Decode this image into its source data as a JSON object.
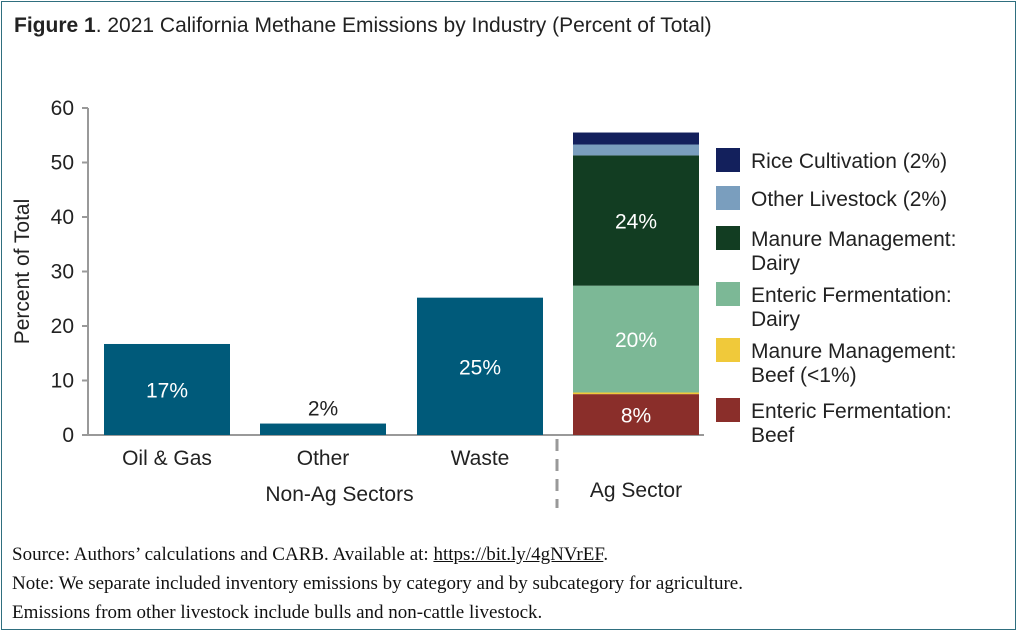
{
  "title": {
    "bold": "Figure 1",
    "rest": ". 2021 California Methane Emissions by Industry (Percent of Total)"
  },
  "notes": {
    "source_prefix": "Source: Authors’ calculations and CARB. Available at: ",
    "source_link": "https://bit.ly/4gNVrEF",
    "source_suffix": ".",
    "note_line1": "Note: We separate included inventory emissions by category and by subcategory for agriculture.",
    "note_line2": "Emissions from other livestock include bulls and non-cattle livestock."
  },
  "colors": {
    "non_ag": "#005a7a",
    "rice": "#13205c",
    "other_livestock": "#7a9ebe",
    "manure_dairy": "#123d22",
    "enteric_dairy": "#7cb896",
    "manure_beef": "#f0c93a",
    "enteric_beef": "#8a2e2a",
    "axis": "#999999"
  },
  "chart_data": {
    "type": "bar",
    "ylabel": "Percent of Total",
    "ylim": [
      0,
      60
    ],
    "yticks": [
      0,
      10,
      20,
      30,
      40,
      50,
      60
    ],
    "grid": false,
    "legend_position": "right",
    "groups": [
      {
        "label": "Non-Ag Sectors",
        "categories": [
          "Oil & Gas",
          "Other",
          "Waste"
        ]
      },
      {
        "label": "Ag Sector",
        "categories": [
          ""
        ]
      }
    ],
    "non_ag_bars": [
      {
        "category": "Oil & Gas",
        "value": 16.7,
        "label": "17%"
      },
      {
        "category": "Other",
        "value": 2.1,
        "label": "2%"
      },
      {
        "category": "Waste",
        "value": 25.2,
        "label": "25%"
      }
    ],
    "ag_stack": [
      {
        "name": "Enteric Fermentation: Beef",
        "legend_lines": [
          "Enteric Fermentation:",
          "Beef"
        ],
        "value": 7.5,
        "label": "8%",
        "color_key": "enteric_beef"
      },
      {
        "name": "Manure Management: Beef (<1%)",
        "legend_lines": [
          "Manure Management:",
          "Beef (<1%)"
        ],
        "value": 0.3,
        "label": "",
        "color_key": "manure_beef"
      },
      {
        "name": "Enteric Fermentation: Dairy",
        "legend_lines": [
          "Enteric Fermentation:",
          "Dairy"
        ],
        "value": 19.6,
        "label": "20%",
        "color_key": "enteric_dairy"
      },
      {
        "name": "Manure Management: Dairy",
        "legend_lines": [
          "Manure Management:",
          "Dairy"
        ],
        "value": 23.9,
        "label": "24%",
        "color_key": "manure_dairy"
      },
      {
        "name": "Other Livestock (2%)",
        "legend_lines": [
          "Other Livestock (2%)"
        ],
        "value": 2.0,
        "label": "",
        "color_key": "other_livestock"
      },
      {
        "name": "Rice Cultivation (2%)",
        "legend_lines": [
          "Rice Cultivation (2%)"
        ],
        "value": 2.2,
        "label": "",
        "color_key": "rice"
      }
    ]
  }
}
